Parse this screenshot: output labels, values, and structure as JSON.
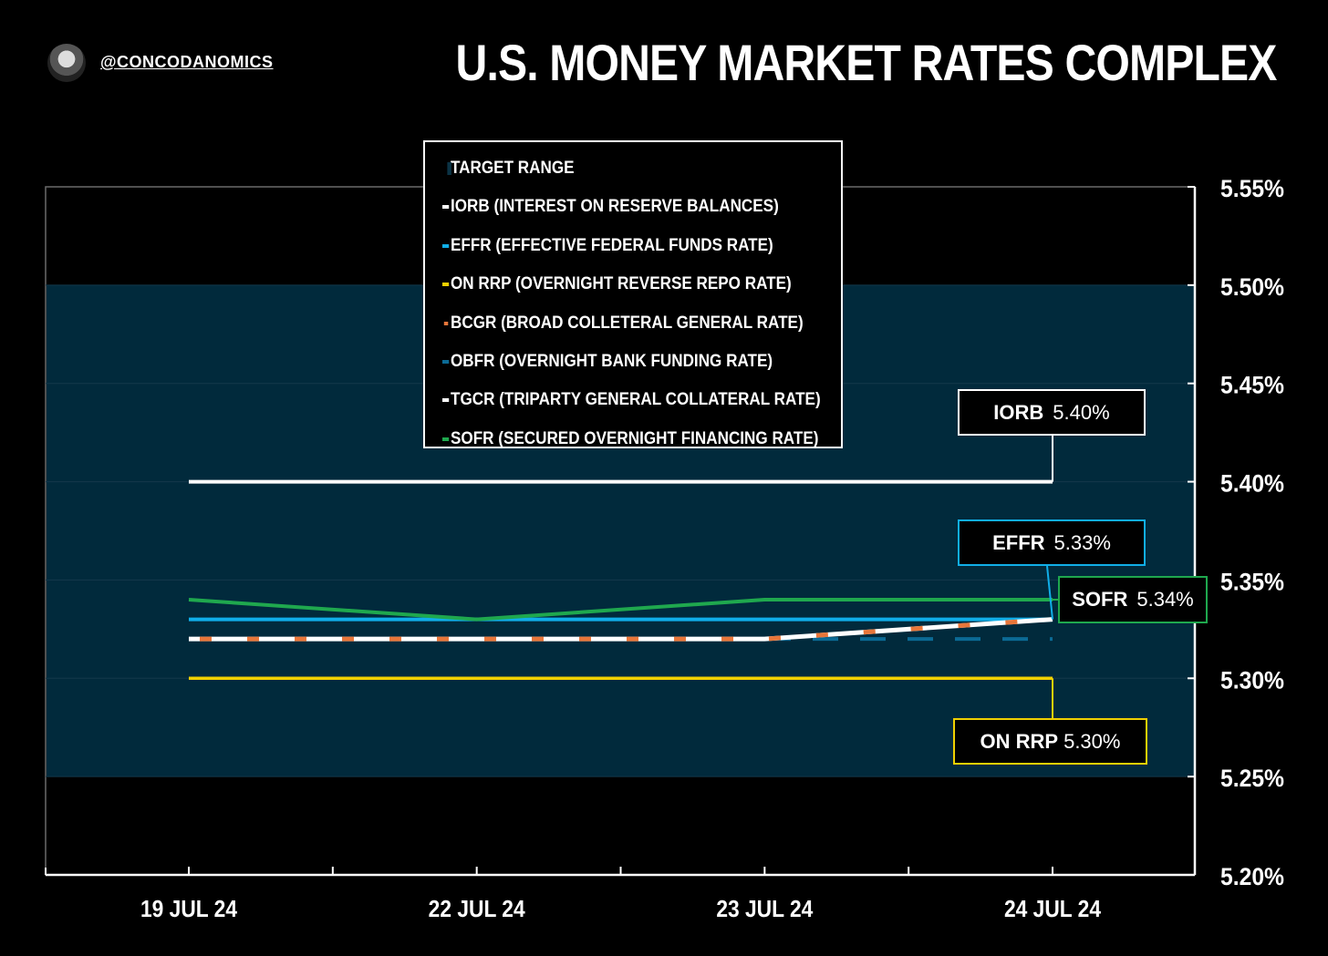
{
  "header": {
    "handle": "@CONCODANOMICS",
    "title": "U.S. MONEY MARKET RATES COMPLEX"
  },
  "chart_data": {
    "type": "line",
    "categories": [
      "19 JUL 24",
      "22 JUL 24",
      "23 JUL 24",
      "24 JUL 24"
    ],
    "ylim": [
      5.2,
      5.55
    ],
    "yticks": [
      "5.20%",
      "5.25%",
      "5.30%",
      "5.35%",
      "5.40%",
      "5.45%",
      "5.50%",
      "5.55%"
    ],
    "target_range": {
      "name": "TARGET RANGE",
      "low": 5.25,
      "high": 5.5,
      "color": "#012a3c"
    },
    "series": [
      {
        "key": "iorb",
        "name": "IORB (INTEREST ON RESERVE BALANCES)",
        "values": [
          5.4,
          5.4,
          5.4,
          5.4
        ],
        "color": "#ffffff",
        "style": "solid"
      },
      {
        "key": "effr",
        "name": "EFFR (EFFECTIVE FEDERAL FUNDS RATE)",
        "values": [
          5.33,
          5.33,
          5.33,
          5.33
        ],
        "color": "#10aee8",
        "style": "solid"
      },
      {
        "key": "onrrp",
        "name": "ON RRP (OVERNIGHT REVERSE REPO RATE)",
        "values": [
          5.3,
          5.3,
          5.3,
          5.3
        ],
        "color": "#f0d000",
        "style": "solid"
      },
      {
        "key": "bcgr",
        "name": "BCGR (BROAD COLLETERAL GENERAL RATE)",
        "values": [
          5.32,
          5.32,
          5.32,
          5.33
        ],
        "color": "#e8763a",
        "style": "dashed"
      },
      {
        "key": "obfr",
        "name": "OBFR (OVERNIGHT BANK FUNDING RATE)",
        "values": [
          5.32,
          5.32,
          5.32,
          5.32
        ],
        "color": "#0b6a95",
        "style": "dashed"
      },
      {
        "key": "tgcr",
        "name": "TGCR (TRIPARTY GENERAL COLLATERAL RATE)",
        "values": [
          5.32,
          5.32,
          5.32,
          5.33
        ],
        "color": "#ffffff",
        "style": "solid"
      },
      {
        "key": "sofr",
        "name": "SOFR (SECURED OVERNIGHT FINANCING RATE)",
        "values": [
          5.34,
          5.33,
          5.34,
          5.34
        ],
        "color": "#1fa84e",
        "style": "solid"
      }
    ],
    "callouts": {
      "iorb": {
        "label": "IORB",
        "value": "5.40%"
      },
      "effr": {
        "label": "EFFR",
        "value": "5.33%"
      },
      "sofr": {
        "label": "SOFR",
        "value": "5.34%"
      },
      "onrrp": {
        "label": "ON RRP",
        "value": "5.30%"
      }
    }
  }
}
